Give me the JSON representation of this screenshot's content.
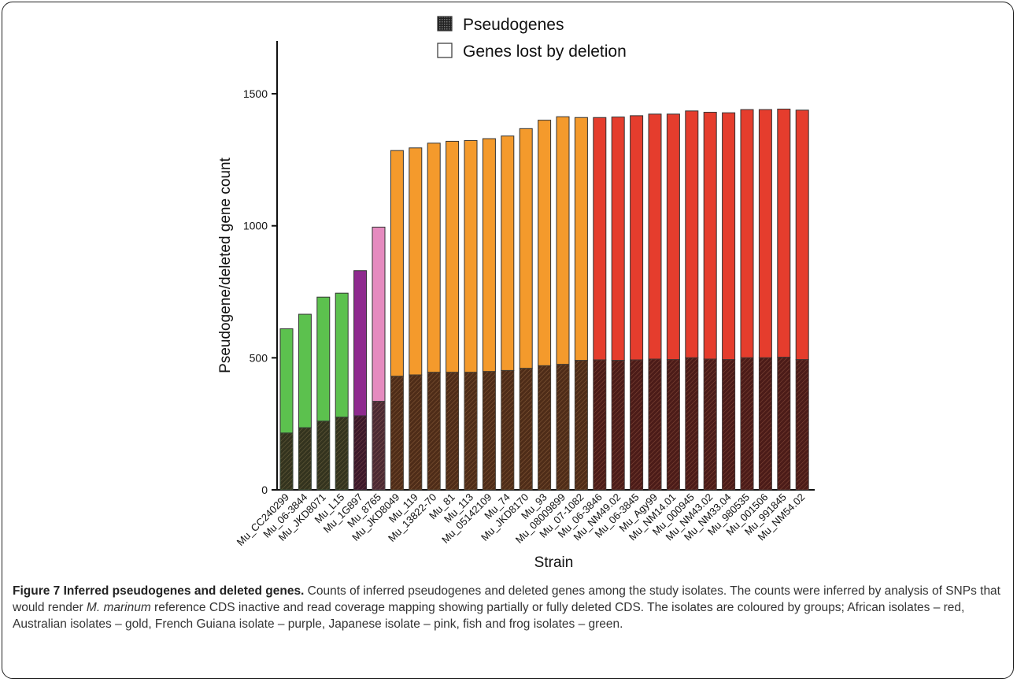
{
  "chart_data": {
    "type": "bar",
    "stacked": true,
    "ylabel": "Pseudogene/deleted gene count",
    "xlabel": "Strain",
    "ylim": [
      0,
      1700
    ],
    "yticks": [
      0,
      500,
      1000,
      1500
    ],
    "legend": {
      "placement": "top-center",
      "entries": [
        {
          "name": "Pseudogenes",
          "style": "hatched-dark"
        },
        {
          "name": "Genes lost by deletion",
          "style": "open"
        }
      ]
    },
    "group_colors": {
      "green": "#5cc14e",
      "purple": "#8e2a8e",
      "pink": "#e58bbf",
      "gold": "#f49a2c",
      "red": "#e53d2d"
    },
    "categories": [
      "Mu_CC240299",
      "Mu_06-3844",
      "Mu_JKD8071",
      "Mu_L15",
      "Mu_1G897",
      "Mu_8765",
      "Mu_JKD8049",
      "Mu_119",
      "Mu_13822-70",
      "Mu_81",
      "Mu_113",
      "Mu_05142109",
      "Mu_74",
      "Mu_JKD8170",
      "Mu_93",
      "Mu_08009899",
      "Mu_07-1082",
      "Mu_06-3846",
      "Mu_NM49.02",
      "Mu_06-3845",
      "Mu_Agy99",
      "Mu_NM14.01",
      "Mu_000945",
      "Mu_NM43.02",
      "Mu_NM33.04",
      "Mu_980535",
      "Mu_001506",
      "Mu_991845",
      "Mu_NM54.02"
    ],
    "groups": [
      "green",
      "green",
      "green",
      "green",
      "purple",
      "pink",
      "gold",
      "gold",
      "gold",
      "gold",
      "gold",
      "gold",
      "gold",
      "gold",
      "gold",
      "gold",
      "gold",
      "red",
      "red",
      "red",
      "red",
      "red",
      "red",
      "red",
      "red",
      "red",
      "red",
      "red",
      "red"
    ],
    "series": [
      {
        "name": "Pseudogenes",
        "values": [
          215,
          235,
          260,
          275,
          280,
          335,
          430,
          435,
          445,
          445,
          445,
          448,
          452,
          460,
          470,
          475,
          490,
          492,
          490,
          492,
          495,
          493,
          500,
          495,
          493,
          500,
          500,
          502,
          493
        ]
      },
      {
        "name": "Genes lost by deletion",
        "values": [
          395,
          430,
          470,
          470,
          550,
          660,
          855,
          860,
          868,
          875,
          878,
          882,
          888,
          908,
          930,
          938,
          920,
          918,
          922,
          925,
          928,
          930,
          935,
          935,
          935,
          940,
          940,
          940,
          945
        ]
      }
    ]
  },
  "caption": {
    "title": "Figure 7 Inferred pseudogenes and deleted genes.",
    "text_before_species": " Counts of inferred pseudogenes and deleted genes among the study isolates. The counts were inferred by analysis of SNPs that would render ",
    "species": "M. marinum",
    "text_after_species": " reference CDS inactive and read coverage mapping showing partially or fully deleted CDS. The isolates are coloured by groups; African isolates – red, Australian isolates – gold, French Guiana isolate – purple, Japanese isolate – pink, fish and frog isolates – green."
  }
}
